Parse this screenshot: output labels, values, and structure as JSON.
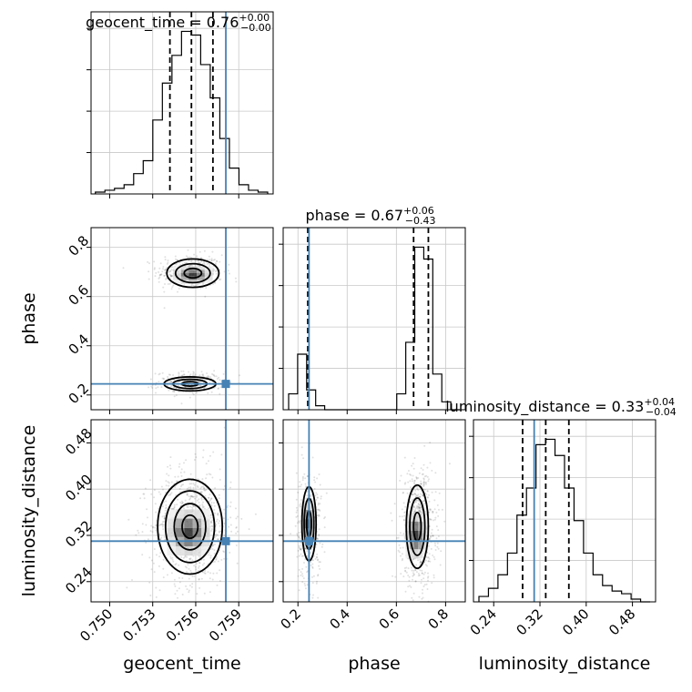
{
  "chart_data": {
    "type": "corner",
    "parameters": [
      "geocent_time",
      "phase",
      "luminosity_distance"
    ],
    "truths": {
      "geocent_time": 0.7581,
      "phase": 0.245,
      "luminosity_distance": 0.31
    },
    "titles": {
      "geocent_time": {
        "name": "geocent_time",
        "median": "0.76",
        "plus": "+0.00",
        "minus": "−0.00"
      },
      "phase": {
        "name": "phase",
        "median": "0.67",
        "plus": "+0.06",
        "minus": "−0.43"
      },
      "luminosity_distance": {
        "name": "luminosity_distance",
        "median": "0.33",
        "plus": "+0.04",
        "minus": "−0.04"
      }
    },
    "ranges": {
      "geocent_time": [
        0.7487,
        0.7614
      ],
      "phase": [
        0.14,
        0.88
      ],
      "luminosity_distance": [
        0.205,
        0.52
      ]
    },
    "ticks": {
      "geocent_time": [
        0.75,
        0.753,
        0.756,
        0.759
      ],
      "phase": [
        0.2,
        0.4,
        0.6,
        0.8
      ],
      "luminosity_distance": [
        0.24,
        0.32,
        0.4,
        0.48
      ]
    },
    "tick_labels": {
      "geocent_time": [
        "0.750",
        "0.753",
        "0.756",
        "0.759"
      ],
      "phase": [
        "0.2",
        "0.4",
        "0.6",
        "0.8"
      ],
      "luminosity_distance": [
        "0.24",
        "0.32",
        "0.40",
        "0.48"
      ]
    },
    "quantiles": {
      "geocent_time": [
        0.7542,
        0.7557,
        0.7572
      ],
      "phase": [
        0.24,
        0.67,
        0.73
      ],
      "luminosity_distance": [
        0.29,
        0.33,
        0.37
      ]
    },
    "histograms": {
      "geocent_time": [
        1,
        2,
        3,
        5,
        11,
        18,
        40,
        60,
        75,
        88,
        86,
        70,
        52,
        30,
        14,
        5,
        2,
        1
      ],
      "phase": [
        4,
        14,
        5,
        1,
        0,
        0,
        0,
        0,
        0,
        0,
        0,
        0,
        4,
        17,
        41,
        38,
        9,
        2,
        0
      ],
      "luminosity_distance": [
        2,
        5,
        10,
        18,
        32,
        42,
        58,
        60,
        54,
        42,
        30,
        18,
        10,
        6,
        4,
        3,
        1,
        0
      ]
    },
    "xlabels": [
      "geocent_time",
      "phase",
      "luminosity_distance"
    ],
    "ylabels": [
      "phase",
      "luminosity_distance"
    ]
  }
}
